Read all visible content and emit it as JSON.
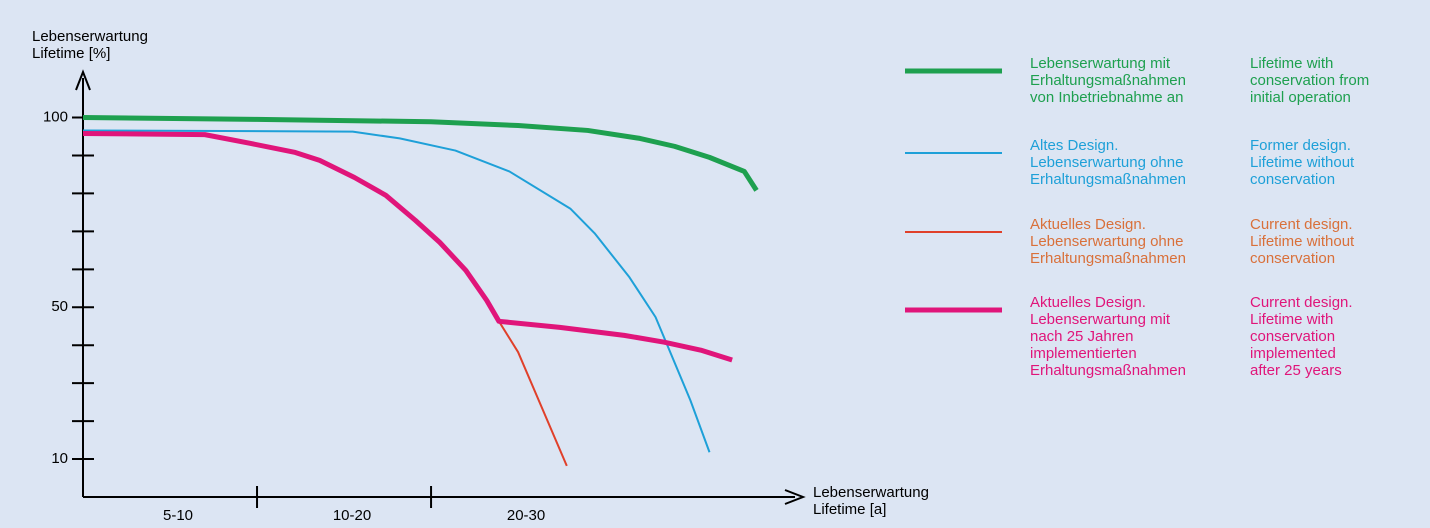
{
  "chart_data": {
    "type": "line",
    "y_label": [
      "Lebenserwartung",
      "Lifetime [%]"
    ],
    "x_label": [
      "Lebenserwartung",
      "Lifetime [a]"
    ],
    "categories": [
      "5-10",
      "10-20",
      "20-30"
    ],
    "xlim": [
      0,
      4.12
    ],
    "xticks": [
      1,
      2
    ],
    "ylim": [
      0,
      112
    ],
    "yticks": [
      10,
      50,
      100
    ],
    "minor_yticks": [
      20,
      30,
      40,
      60,
      70,
      80,
      90
    ],
    "series": [
      {
        "name": "Lebenserwartung mit Erhaltungsmaßnahmen von Inbetriebnahme an",
        "color": "#1ea04f",
        "text_color": "#1ea04f",
        "width": 5,
        "legend_de": [
          "Lebenserwartung mit",
          "Erhaltungsmaßnahmen",
          "von Inbetriebnahme an"
        ],
        "legend_en": [
          "Lifetime with",
          "conservation from",
          "initial operation"
        ],
        "x": [
          0,
          1,
          2,
          2.5,
          2.9,
          3.2,
          3.4,
          3.6,
          3.8,
          3.87
        ],
        "values": [
          100,
          99.5,
          98.9,
          97.9,
          96.6,
          94.5,
          92.4,
          89.5,
          85.8,
          80.8
        ]
      },
      {
        "name": "Altes Design. Lebenserwartung ohne Erhaltungsmaßnahmen",
        "color": "#1ea0d8",
        "text_color": "#1ea0d8",
        "width": 2,
        "legend_de": [
          "Altes Design.",
          "Lebenserwartung ohne",
          "Erhaltungsmaßnahmen"
        ],
        "legend_en": [
          "Former design.",
          "Lifetime without",
          "conservation"
        ],
        "x": [
          0,
          1.55,
          1.82,
          2.14,
          2.45,
          2.8,
          2.94,
          3.14,
          3.29,
          3.49,
          3.6
        ],
        "values": [
          96.6,
          96.3,
          94.5,
          91.3,
          85.8,
          76,
          69.5,
          57.9,
          47.4,
          25.5,
          11.8
        ]
      },
      {
        "name": "Aktuelles Design. Lebenserwartung ohne Erhaltungsmaßnahmen",
        "color": "#e0402a",
        "text_color": "#d9703a",
        "width": 2,
        "legend_de": [
          "Aktuelles Design.",
          "Lebenserwartung ohne",
          "Erhaltungsmaßnahmen"
        ],
        "legend_en": [
          "Current design.",
          "Lifetime without",
          "conservation"
        ],
        "x": [
          2.39,
          2.5,
          2.78
        ],
        "values": [
          46.3,
          38.2,
          8.2
        ]
      },
      {
        "name": "Aktuelles Design. Lebenserwartung mit nach 25 Jahren implementierten Erhaltungsmaßnahmen",
        "color": "#e0157a",
        "text_color": "#e0157a",
        "width": 5,
        "legend_de": [
          "Aktuelles Design.",
          "Lebenserwartung mit",
          "nach 25 Jahren",
          "implementierten",
          "Erhaltungsmaßnahmen"
        ],
        "legend_en": [
          "Current design.",
          "Lifetime with",
          "conservation",
          "implemented",
          "after 25 years"
        ],
        "x": [
          0,
          0.7,
          0.96,
          1.22,
          1.36,
          1.56,
          1.74,
          1.91,
          2.05,
          2.2,
          2.32,
          2.39,
          2.74,
          3.11,
          3.34,
          3.55,
          3.73
        ],
        "values": [
          95.8,
          95.5,
          93.2,
          90.8,
          88.7,
          84.2,
          79.5,
          72.9,
          67.1,
          59.7,
          51.8,
          46.3,
          44.7,
          42.6,
          40.8,
          38.7,
          36.1
        ]
      }
    ]
  }
}
